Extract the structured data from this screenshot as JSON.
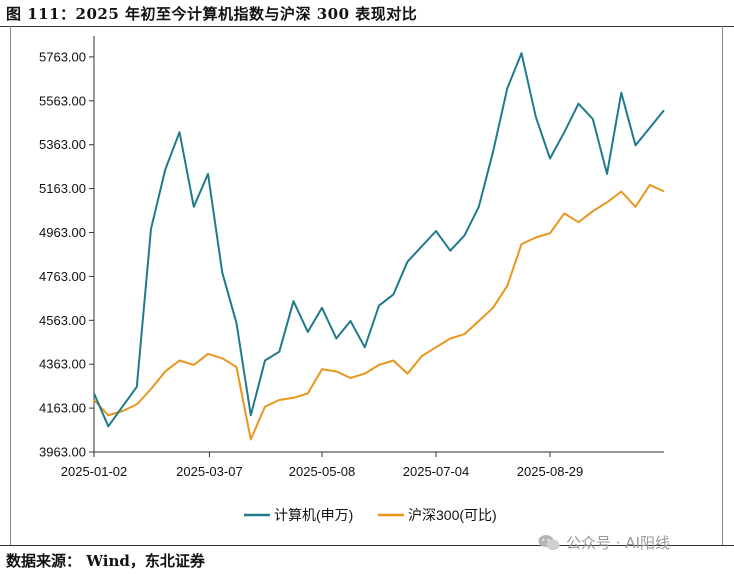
{
  "figure": {
    "title": "图 111：2025 年初至今计算机指数与沪深 300 表现对比",
    "source": "数据来源：  Wind，东北证券",
    "watermark": "公众号 · AI阳线",
    "watermark_icon": "wechat-icon"
  },
  "chart_data": {
    "type": "line",
    "title": "",
    "xlabel": "",
    "ylabel": "",
    "x": [
      "2025-01-02",
      "2025-01-09",
      "2025-01-16",
      "2025-01-23",
      "2025-02-06",
      "2025-02-13",
      "2025-02-20",
      "2025-02-27",
      "2025-03-06",
      "2025-03-13",
      "2025-03-20",
      "2025-03-27",
      "2025-04-03",
      "2025-04-10",
      "2025-04-17",
      "2025-04-24",
      "2025-05-08",
      "2025-05-15",
      "2025-05-22",
      "2025-05-29",
      "2025-06-05",
      "2025-06-12",
      "2025-06-19",
      "2025-06-26",
      "2025-07-04",
      "2025-07-11",
      "2025-07-18",
      "2025-07-25",
      "2025-08-01",
      "2025-08-08",
      "2025-08-15",
      "2025-08-22",
      "2025-08-29",
      "2025-09-05",
      "2025-09-12",
      "2025-09-19",
      "2025-09-26",
      "2025-10-10",
      "2025-10-17",
      "2025-10-24",
      "2025-10-31"
    ],
    "x_ticks": [
      "2025-01-02",
      "2025-03-07",
      "2025-05-08",
      "2025-07-04",
      "2025-08-29"
    ],
    "x_tick_index": [
      0,
      8.1,
      16,
      24,
      32
    ],
    "y_ticks": [
      "3963.00",
      "4163.00",
      "4363.00",
      "4563.00",
      "4763.00",
      "4963.00",
      "5163.00",
      "5363.00",
      "5563.00",
      "5763.00"
    ],
    "ylim": [
      3963,
      5840
    ],
    "grid": false,
    "legend_position": "bottom",
    "series": [
      {
        "name": "计算机(申万)",
        "color": "#1f7a8c",
        "values": [
          4230,
          4080,
          4170,
          4260,
          4980,
          5250,
          5420,
          5080,
          5230,
          4780,
          4550,
          4130,
          4380,
          4420,
          4650,
          4510,
          4620,
          4480,
          4560,
          4440,
          4630,
          4680,
          4830,
          4900,
          4970,
          4880,
          4950,
          5080,
          5330,
          5620,
          5780,
          5490,
          5300,
          5420,
          5550,
          5480,
          5230,
          5600,
          5360,
          5440,
          5520
        ]
      },
      {
        "name": "沪深300(可比)",
        "color": "#e8961e",
        "values": [
          4200,
          4130,
          4150,
          4180,
          4250,
          4330,
          4380,
          4360,
          4410,
          4390,
          4350,
          4020,
          4170,
          4200,
          4210,
          4230,
          4340,
          4330,
          4300,
          4320,
          4360,
          4380,
          4320,
          4400,
          4440,
          4480,
          4500,
          4560,
          4620,
          4720,
          4910,
          4940,
          4960,
          5050,
          5010,
          5060,
          5100,
          5150,
          5080,
          5180,
          5150
        ]
      }
    ]
  }
}
